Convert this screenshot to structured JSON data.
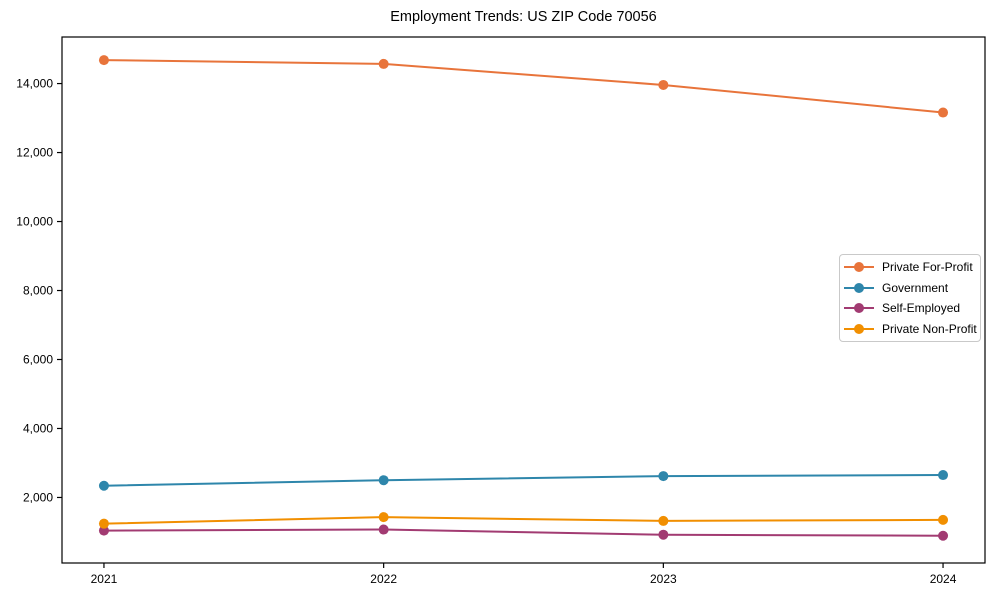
{
  "figure": {
    "background": "#ffffff",
    "axis_color": "#000000",
    "text_color": "#000000"
  },
  "chart_data": {
    "type": "line",
    "title": "Employment Trends: US ZIP Code 70056",
    "xlabel": "",
    "ylabel": "",
    "x": [
      2021,
      2022,
      2023,
      2024
    ],
    "series": [
      {
        "name": "Private For-Profit",
        "color": "#E8743B",
        "values": [
          14680,
          14570,
          13960,
          13160
        ]
      },
      {
        "name": "Government",
        "color": "#2E86AB",
        "values": [
          2340,
          2500,
          2620,
          2650
        ]
      },
      {
        "name": "Self-Employed",
        "color": "#A23B72",
        "values": [
          1040,
          1070,
          920,
          890
        ]
      },
      {
        "name": "Private Non-Profit",
        "color": "#F18F01",
        "values": [
          1240,
          1430,
          1320,
          1350
        ]
      }
    ],
    "xticks": {
      "values": [
        2021,
        2022,
        2023,
        2024
      ],
      "labels": [
        "2021",
        "2022",
        "2023",
        "2024"
      ]
    },
    "yticks": {
      "values": [
        2000,
        4000,
        6000,
        8000,
        10000,
        12000,
        14000
      ],
      "labels": [
        "2,000",
        "4,000",
        "6,000",
        "8,000",
        "10,000",
        "12,000",
        "14,000"
      ]
    },
    "xlim": [
      2020.85,
      2024.15
    ],
    "ylim": [
      100,
      15350
    ],
    "grid": false,
    "marker": "circle",
    "legend": {
      "position": "center-right",
      "border_color": "#c9c9c9",
      "background": "#ffffff"
    }
  }
}
